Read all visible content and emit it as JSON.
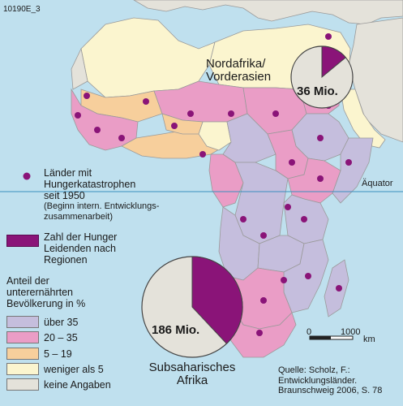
{
  "map_code": "10190E_3",
  "legend": {
    "hunger_marker_lines": [
      "Länder mit",
      "Hungerkatastrophen",
      "seit 1950"
    ],
    "hunger_marker_note_lines": [
      "(Beginn intern. Entwicklungs-",
      "zusammenarbeit)"
    ],
    "total_hungry_lines": [
      "Zahl der Hunger",
      "Leidenden nach",
      "Regionen"
    ],
    "share_title_lines": [
      "Anteil der",
      "unterernährten",
      "Bevölkerung in %"
    ],
    "classes": [
      {
        "label": "über 35",
        "color": "#c5bedd"
      },
      {
        "label": "20 – 35",
        "color": "#ea9dc6"
      },
      {
        "label": "5 – 19",
        "color": "#f7cf9c"
      },
      {
        "label": "weniger als 5",
        "color": "#fbf5cf"
      },
      {
        "label": "keine Angaben",
        "color": "#e4e2da"
      }
    ],
    "pie_color": "#8a1478",
    "marker_color": "#8a1478"
  },
  "regions": {
    "north": {
      "label_lines": [
        "Nordafrika/",
        "Vorderasien"
      ],
      "value": "36 Mio.",
      "share": 0.14
    },
    "south": {
      "label_lines": [
        "Subsaharisches",
        "Afrika"
      ],
      "value": "186 Mio.",
      "share": 0.38
    }
  },
  "equator_label": "Äquator",
  "scale": {
    "zero": "0",
    "distance": "1000",
    "unit": "km"
  },
  "source_lines": [
    "Quelle: Scholz, F.:",
    "Entwicklungsländer.",
    "Braunschweig 2006, S. 78"
  ]
}
